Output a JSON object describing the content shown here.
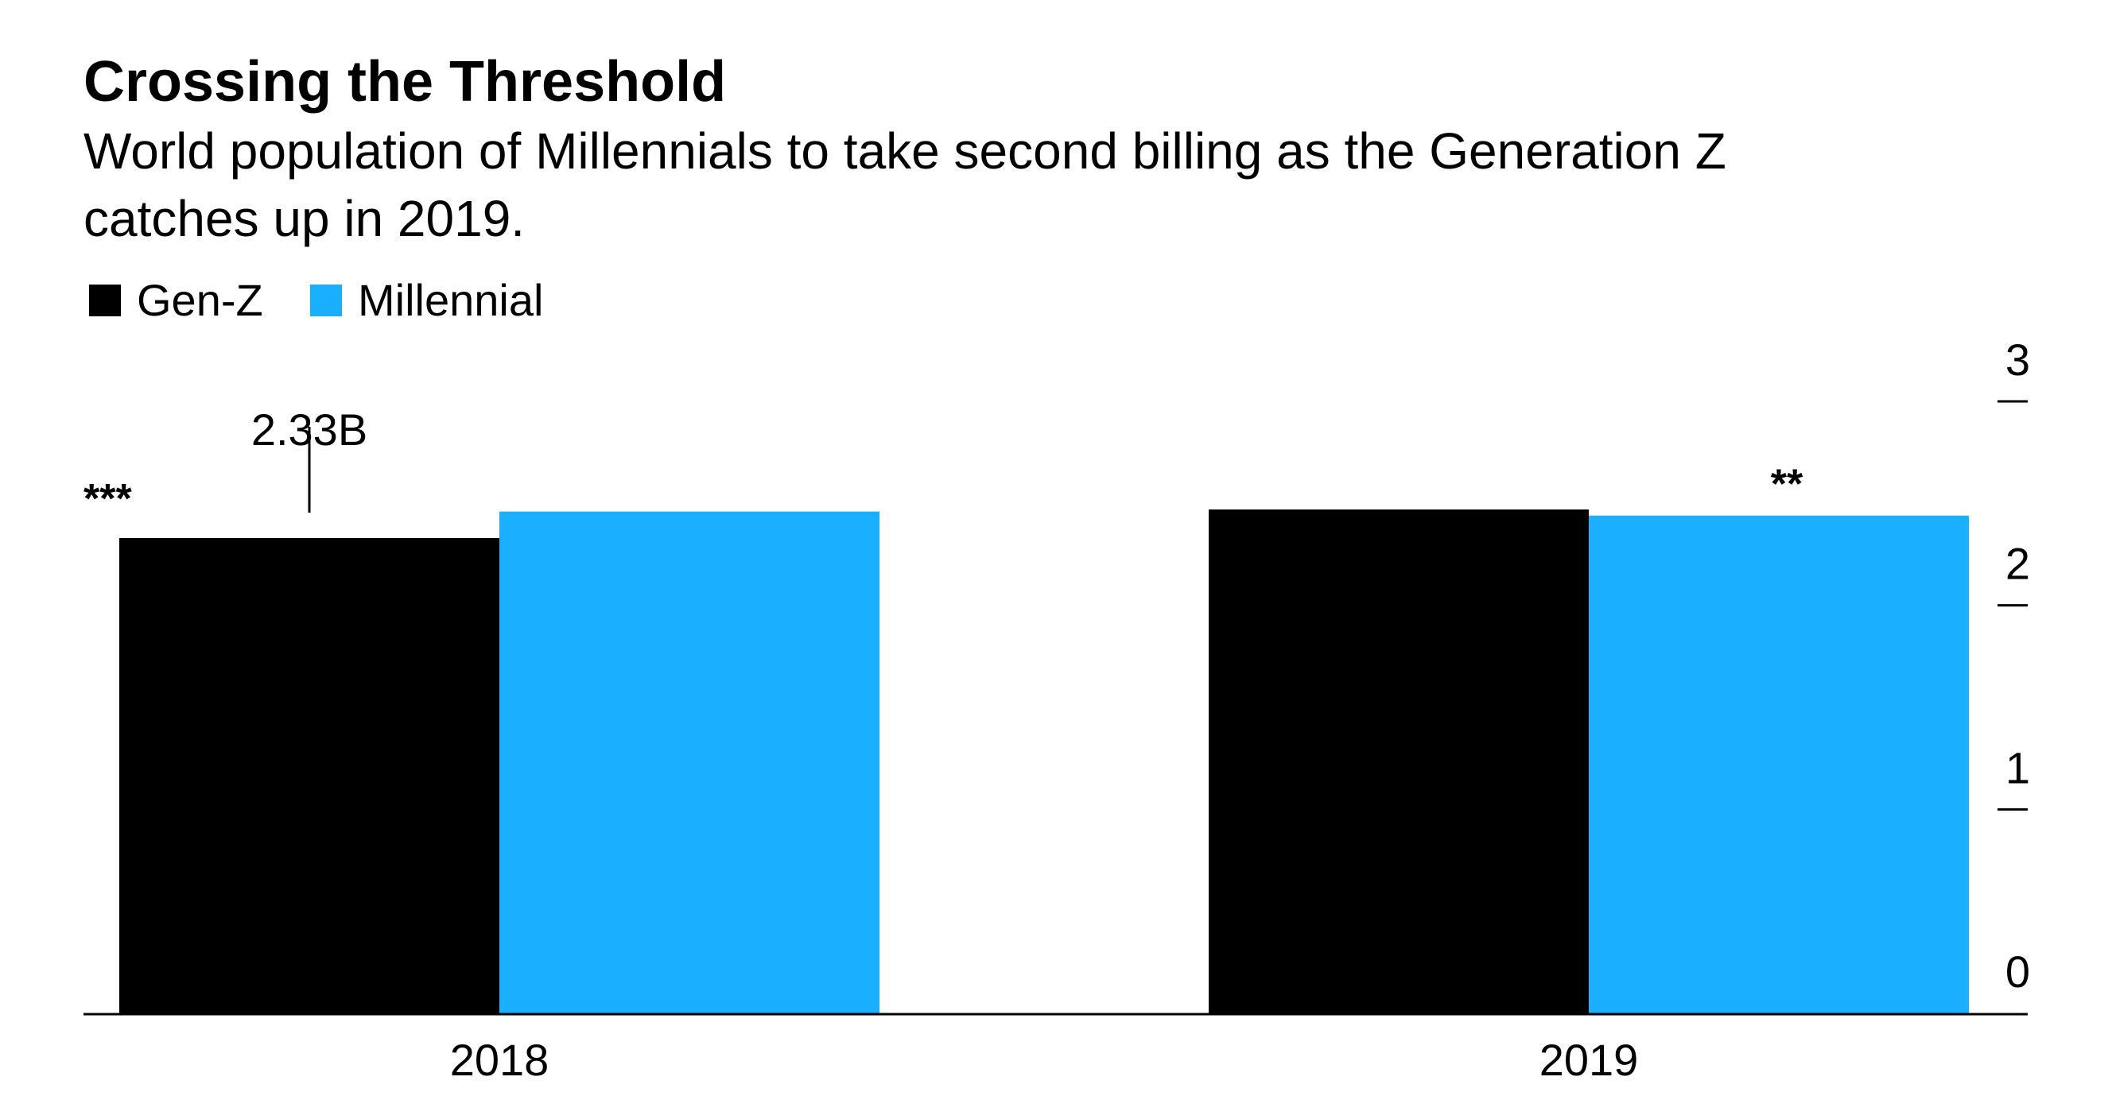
{
  "chart_data": {
    "type": "bar",
    "title": "Crossing the Threshold",
    "subtitle_line1": "World population of Millennials to take second billing as the Generation Z",
    "subtitle_line2": "catches up in 2019.",
    "categories": [
      "2018",
      "2019"
    ],
    "series": [
      {
        "name": "Gen-Z",
        "color": "#000000",
        "values": [
          2.33,
          2.47
        ]
      },
      {
        "name": "Millennial",
        "color": "#1AAFFF",
        "values": [
          2.46,
          2.44
        ]
      }
    ],
    "ylim": [
      0,
      3
    ],
    "yticks": [
      {
        "value": 0,
        "label": "0"
      },
      {
        "value": 1,
        "label": "1"
      },
      {
        "value": 2,
        "label": "2"
      },
      {
        "value": 3,
        "label": "3"
      }
    ],
    "axis_side": "right",
    "grid": false,
    "legend": "top-left",
    "annotation": {
      "label": "2.33B",
      "category": "2018",
      "series": "Gen-Z"
    },
    "markers": [
      {
        "text": "***",
        "category": "2018",
        "series": "Gen-Z"
      },
      {
        "text": "**",
        "category": "2019",
        "series": "Millennial"
      }
    ]
  }
}
